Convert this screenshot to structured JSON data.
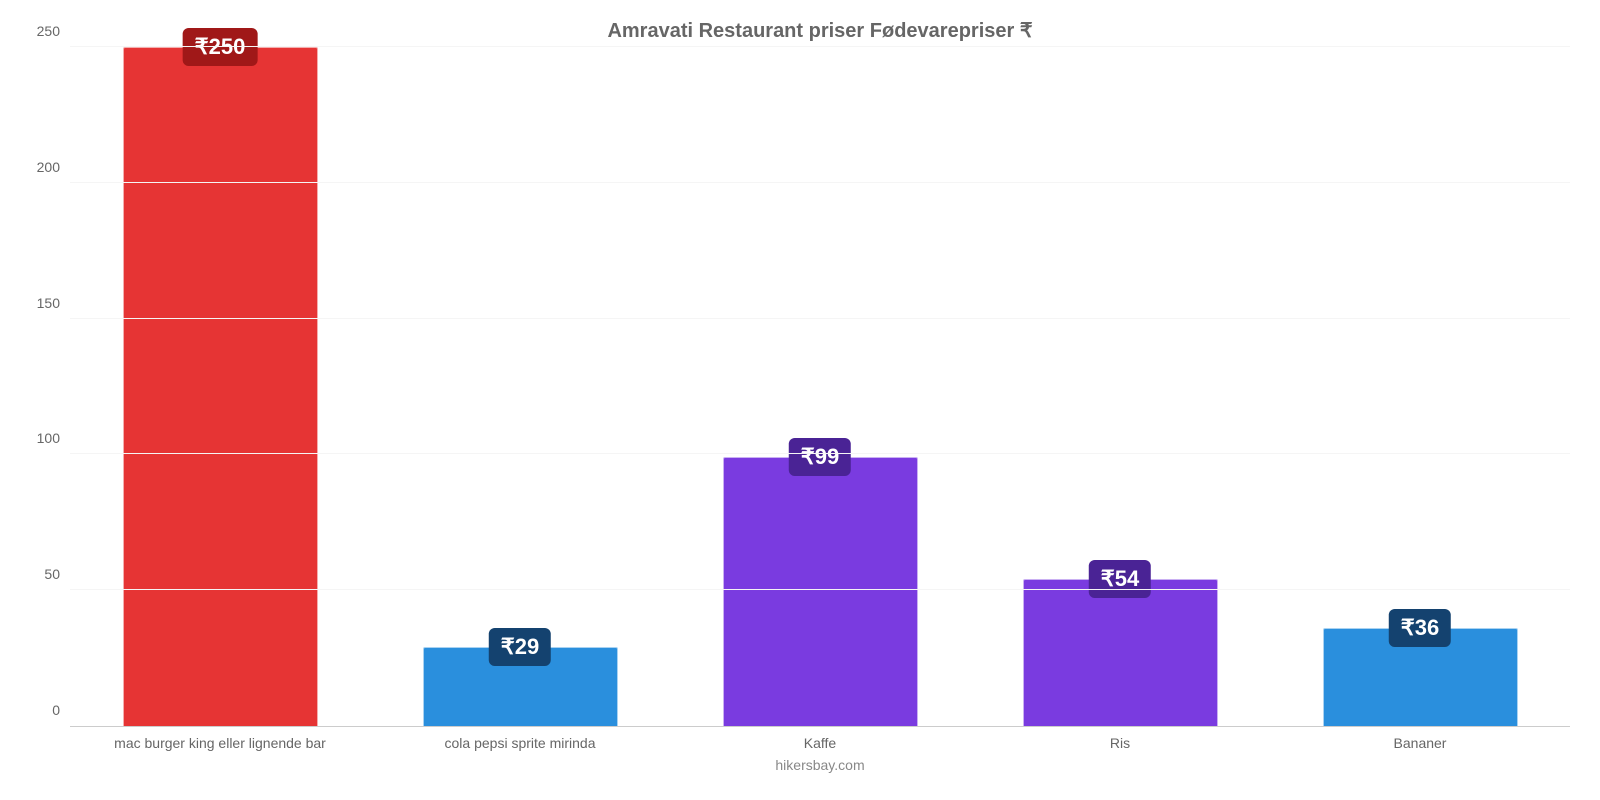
{
  "chart": {
    "type": "bar",
    "title": "Amravati Restaurant priser Fødevarepriser ₹",
    "title_fontsize": 20,
    "title_color": "#666666",
    "background_color": "#ffffff",
    "grid_color": "#f5f5f5",
    "axis_color": "#cccccc",
    "tick_label_color": "#666666",
    "tick_label_fontsize": 14,
    "x_label_fontsize": 14,
    "ylim": [
      0,
      250
    ],
    "ytick_step": 50,
    "y_ticks": [
      0,
      50,
      100,
      150,
      200,
      250
    ],
    "bar_width_pct": 65,
    "value_label_fontsize": 22,
    "value_label_color": "#ffffff",
    "attribution": "hikersbay.com",
    "attribution_color": "#888888",
    "categories": [
      {
        "label": "mac burger king eller lignende bar",
        "value": 250,
        "display": "₹250",
        "color": "#e63434",
        "badge_bg": "#a01818"
      },
      {
        "label": "cola pepsi sprite mirinda",
        "value": 29,
        "display": "₹29",
        "color": "#2a8fdd",
        "badge_bg": "#14426f"
      },
      {
        "label": "Kaffe",
        "value": 99,
        "display": "₹99",
        "color": "#7a3be0",
        "badge_bg": "#4a2395"
      },
      {
        "label": "Ris",
        "value": 54,
        "display": "₹54",
        "color": "#7a3be0",
        "badge_bg": "#4a2395"
      },
      {
        "label": "Bananer",
        "value": 36,
        "display": "₹36",
        "color": "#2a8fdd",
        "badge_bg": "#14426f"
      }
    ]
  }
}
